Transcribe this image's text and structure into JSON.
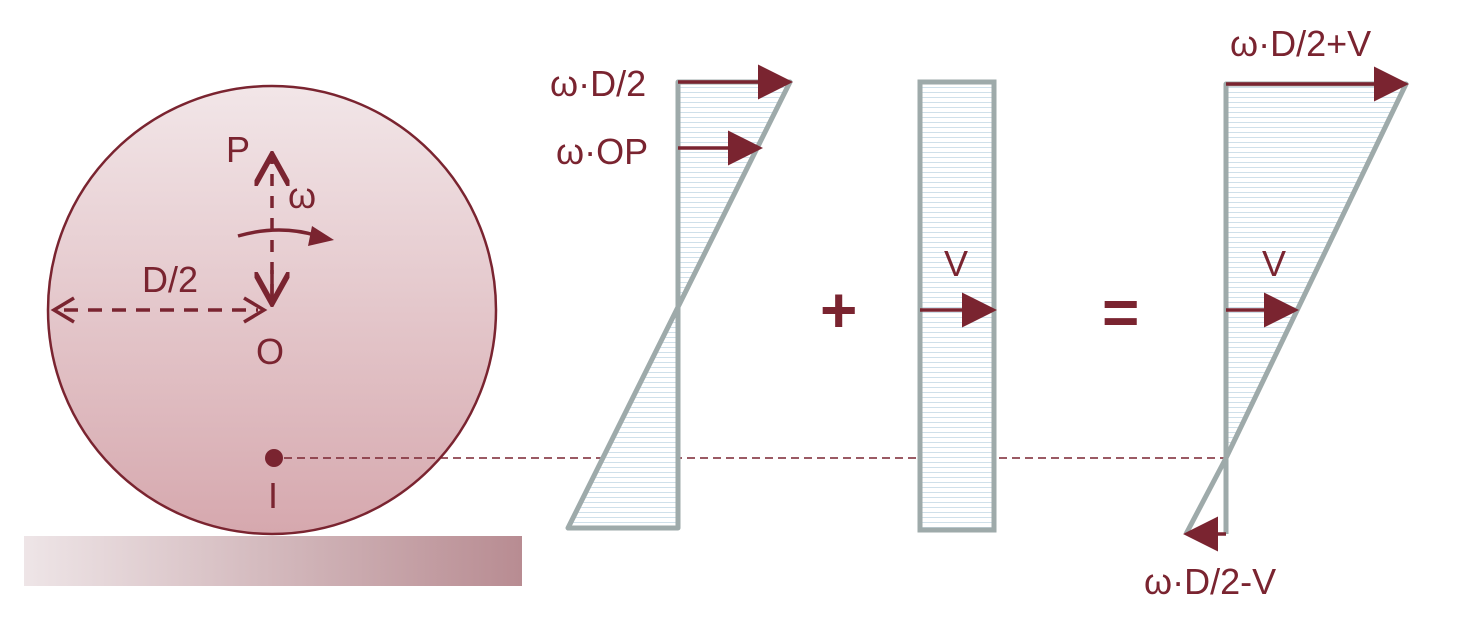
{
  "labels": {
    "P": "P",
    "omega": "ω",
    "half_diameter": "D/2",
    "O": "O",
    "I": "I",
    "top_rotation_velocity": "ω·D/2",
    "op_velocity": "ω·OP",
    "translation_velocity": "V",
    "plus": "+",
    "equals": "=",
    "top_combined_velocity": "ω·D/2+V",
    "center_velocity": "V",
    "bottom_combined_velocity": "ω·D/2-V"
  },
  "colors": {
    "accent": "#7a2430",
    "diagram_stroke": "#9eaaaa",
    "hatch": "#cfe0ea",
    "wheel_top": "#f1e3e6",
    "wheel_bottom": "#d7a9b0",
    "ground_left": "#eee4e6",
    "ground_right": "#b98e94"
  }
}
